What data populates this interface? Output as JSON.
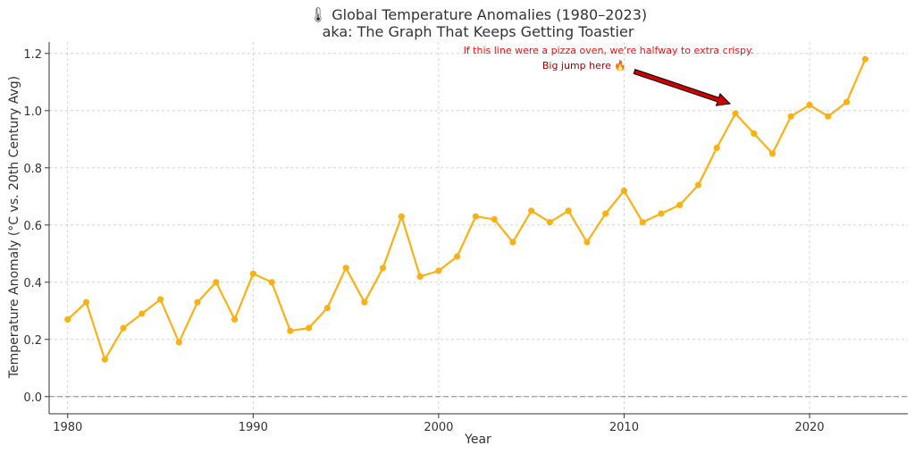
{
  "chart_data": {
    "type": "line",
    "title": "🌡 Global Temperature Anomalies (1980–2023)",
    "subtitle": "aka: The Graph That Keeps Getting Toastier",
    "xlabel": "Year",
    "ylabel": "Temperature Anomaly (°C vs. 20th Century Avg)",
    "xlim": [
      1979,
      2025.3
    ],
    "ylim": [
      -0.06,
      1.24
    ],
    "xticks": [
      1980,
      1990,
      2000,
      2010,
      2020
    ],
    "yticks": [
      0.0,
      0.2,
      0.4,
      0.6,
      0.8,
      1.0,
      1.2
    ],
    "grid": true,
    "reference_line": 0.0,
    "line_color": "#F9B115",
    "x": [
      1980,
      1981,
      1982,
      1983,
      1984,
      1985,
      1986,
      1987,
      1988,
      1989,
      1990,
      1991,
      1992,
      1993,
      1994,
      1995,
      1996,
      1997,
      1998,
      1999,
      2000,
      2001,
      2002,
      2003,
      2004,
      2005,
      2006,
      2007,
      2008,
      2009,
      2010,
      2011,
      2012,
      2013,
      2014,
      2015,
      2016,
      2017,
      2018,
      2019,
      2020,
      2021,
      2022,
      2023
    ],
    "y": [
      0.27,
      0.33,
      0.13,
      0.24,
      0.29,
      0.34,
      0.19,
      0.33,
      0.4,
      0.27,
      0.43,
      0.4,
      0.23,
      0.24,
      0.31,
      0.45,
      0.33,
      0.45,
      0.63,
      0.42,
      0.44,
      0.49,
      0.63,
      0.62,
      0.54,
      0.65,
      0.61,
      0.65,
      0.54,
      0.64,
      0.72,
      0.61,
      0.64,
      0.67,
      0.74,
      0.87,
      0.99,
      0.92,
      0.85,
      0.98,
      1.02,
      0.98,
      1.03,
      1.18
    ],
    "annotations": [
      {
        "text": "If this line were a pizza oven, we're halfway to extra crispy.",
        "color": "#ee1111"
      },
      {
        "text": "Big jump here 🔥",
        "color": "#990000",
        "arrow_target": [
          2016,
          0.99
        ],
        "arrow_color": "#cc0000"
      }
    ]
  }
}
